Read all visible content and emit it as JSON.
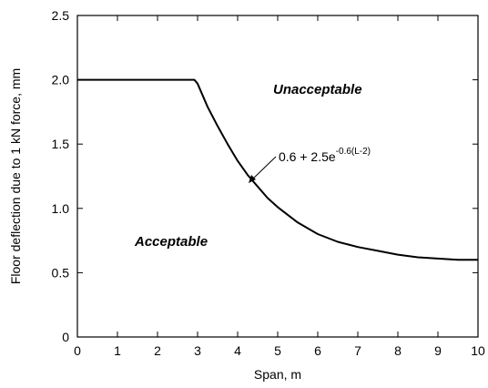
{
  "chart_data": {
    "type": "line",
    "xlabel": "Span, m",
    "ylabel": "Floor deflection due to 1 kN force, mm",
    "xlim": [
      0,
      10
    ],
    "ylim": [
      0,
      2.5
    ],
    "xticks": [
      "0",
      "1",
      "2",
      "3",
      "4",
      "5",
      "6",
      "7",
      "8",
      "9",
      "10"
    ],
    "yticks": [
      "0",
      "0.5",
      "1.0",
      "1.5",
      "2.0",
      "2.5"
    ],
    "grid": false,
    "series": [
      {
        "x": [
          0,
          2.92,
          3.0,
          3.25,
          3.5,
          3.75,
          4.0,
          4.25,
          4.5,
          4.75,
          5.0,
          5.5,
          6.0,
          6.5,
          7.0,
          7.5,
          8.0,
          8.5,
          9.0,
          9.5,
          10.0
        ],
        "values": [
          2.0,
          2.0,
          1.97,
          1.79,
          1.64,
          1.5,
          1.37,
          1.26,
          1.17,
          1.08,
          1.01,
          0.89,
          0.8,
          0.74,
          0.7,
          0.67,
          0.64,
          0.62,
          0.61,
          0.6,
          0.6
        ],
        "color": "#000000"
      }
    ],
    "annotations": {
      "unacceptable": "Unacceptable",
      "acceptable": "Acceptable",
      "formula_base": "0.6 + 2.5e",
      "formula_exponent": "-0.6(L-2)"
    }
  }
}
